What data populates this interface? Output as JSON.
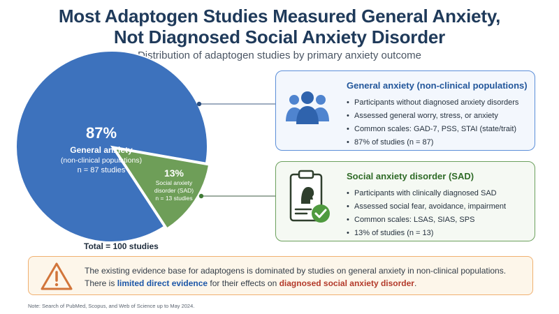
{
  "header": {
    "title_line1": "Most Adaptogen Studies Measured General Anxiety,",
    "title_line2": "Not Diagnosed Social Anxiety Disorder",
    "subtitle": "Distribution of adaptogen studies by primary anxiety outcome"
  },
  "chart_data": {
    "type": "pie",
    "title": "Most Adaptogen Studies Measured General Anxiety, Not Diagnosed Social Anxiety Disorder",
    "subtitle": "Distribution of adaptogen studies by primary anxiety outcome",
    "total_label": "Total = 100 studies",
    "slices": [
      {
        "name": "General anxiety",
        "value": 87,
        "pct_label": "87%",
        "label_lines": [
          "General anxiety",
          "(non-clinical populations)",
          "n = 87 studies"
        ],
        "color": "#3d72bd"
      },
      {
        "name": "Social anxiety disorder (SAD)",
        "value": 13,
        "pct_label": "13%",
        "label_lines": [
          "Social anxiety",
          "disorder (SAD)",
          "n = 13 studies"
        ],
        "color": "#6e9e58"
      }
    ]
  },
  "cards": [
    {
      "title": "General anxiety (non-clinical populations)",
      "icon": "people-group-icon",
      "accent": "#5b8ed8",
      "bullets": [
        "Participants without diagnosed anxiety disorders",
        "Assessed general worry, stress, or anxiety",
        "Common scales: GAD-7, PSS, STAI (state/trait)",
        "87% of studies (n = 87)"
      ]
    },
    {
      "title": "Social anxiety disorder (SAD)",
      "icon": "clipboard-check-icon",
      "accent": "#6ba05c",
      "bullets": [
        "Participants with clinically diagnosed SAD",
        "Assessed social fear, avoidance, impairment",
        "Common scales: LSAS, SIAS, SPS",
        "13% of studies (n = 13)"
      ]
    }
  ],
  "callout": {
    "icon": "warning-triangle-icon",
    "line1": "The existing evidence base for adaptogens is dominated by studies on general anxiety in non-clinical populations.",
    "line2_pre": "There is ",
    "line2_hl1": "limited direct evidence",
    "line2_mid": " for their effects on ",
    "line2_hl2": "diagnosed social anxiety disorder",
    "line2_post": "."
  },
  "note": "Note: Search of PubMed, Scopus, and Web of Science up to May 2024."
}
